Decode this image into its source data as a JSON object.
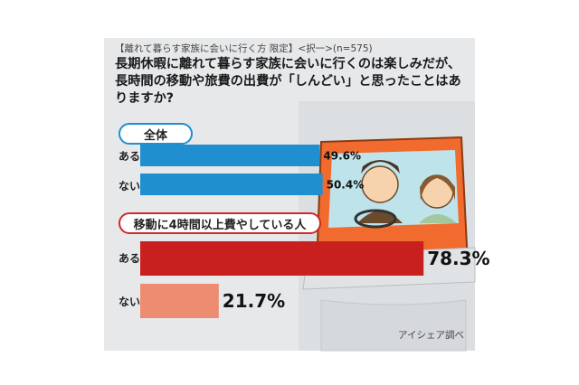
{
  "header": {
    "subtitle": "【離れて暮らす家族に会いに行く方 限定】<択一>(n=575)",
    "question": "長期休暇に離れて暮らす家族に会いに行くのは楽しみだが、長時間の移動や旅費の出費が「しんどい」と思ったことはありますか?"
  },
  "source": "アイシェア調べ",
  "colors": {
    "group1_bar": "#1f8fd0",
    "group2_bar_yes": "#c8201f",
    "group2_bar_no": "#ee8c72"
  },
  "chart_data": [
    {
      "type": "bar",
      "orientation": "horizontal",
      "group_label": "全体",
      "categories": [
        "ある",
        "ない"
      ],
      "values": [
        49.6,
        50.4
      ],
      "value_labels": [
        "49.6%",
        "50.4%"
      ],
      "xlim": [
        0,
        100
      ]
    },
    {
      "type": "bar",
      "orientation": "horizontal",
      "group_label": "移動に4時間以上費やしている人",
      "categories": [
        "ある",
        "ない"
      ],
      "values": [
        78.3,
        21.7
      ],
      "value_labels": [
        "78.3%",
        "21.7%"
      ],
      "xlim": [
        0,
        100
      ]
    }
  ]
}
